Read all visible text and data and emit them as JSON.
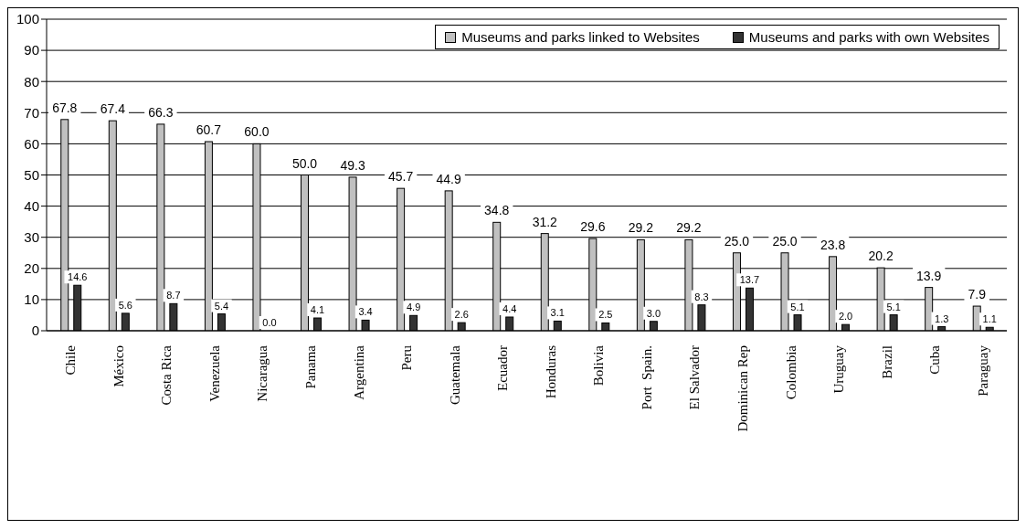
{
  "chart_data": {
    "type": "bar",
    "categories": [
      "Chile",
      "México",
      "Costa Rica",
      "Venezuela",
      "Nicaragua",
      "Panama",
      "Argentina",
      "Peru",
      "Guatemala",
      "Ecuador",
      "Honduras",
      "Bolivia",
      "Port  Spain.",
      "El Salvador",
      "Dominican Rep",
      "Colombia",
      "Uruguay",
      "Brazil",
      "Cuba",
      "Paraguay"
    ],
    "series": [
      {
        "name": "Museums and parks linked to Websites",
        "color": "#c0c0c0",
        "values": [
          67.8,
          67.4,
          66.3,
          60.7,
          60.0,
          50.0,
          49.3,
          45.7,
          44.9,
          34.8,
          31.2,
          29.6,
          29.2,
          29.2,
          25.0,
          25.0,
          23.8,
          20.2,
          13.9,
          7.9
        ],
        "value_labels": [
          "67.8",
          "67.4",
          "66.3",
          "60.7",
          "60.0",
          "50.0",
          "49.3",
          "45.7",
          "44.9",
          "34.8",
          "31.2",
          "29.6",
          "29.2",
          "29.2",
          "25.0",
          "25.0",
          "23.8",
          "20.2",
          "13.9",
          "7.9"
        ]
      },
      {
        "name": "Museums and parks with own Websites",
        "color": "#333333",
        "values": [
          14.6,
          5.6,
          8.7,
          5.4,
          0.0,
          4.1,
          3.4,
          4.9,
          2.6,
          4.4,
          3.1,
          2.5,
          3.0,
          8.3,
          13.7,
          5.1,
          2.0,
          5.1,
          1.3,
          1.1
        ],
        "value_labels": [
          "14.6",
          "5.6",
          "8.7",
          "5.4",
          "0.0",
          "4.1",
          "3.4",
          "4.9",
          "2.6",
          "4.4",
          "3.1",
          "2.5",
          "3.0",
          "8.3",
          "13.7",
          "5.1",
          "2.0",
          "5.1",
          "1.3",
          "1.1"
        ]
      }
    ],
    "ylim": [
      0,
      100
    ],
    "yticks": [
      0,
      10,
      20,
      30,
      40,
      50,
      60,
      70,
      80,
      90,
      100
    ],
    "grid": "y",
    "legend": "top right"
  }
}
